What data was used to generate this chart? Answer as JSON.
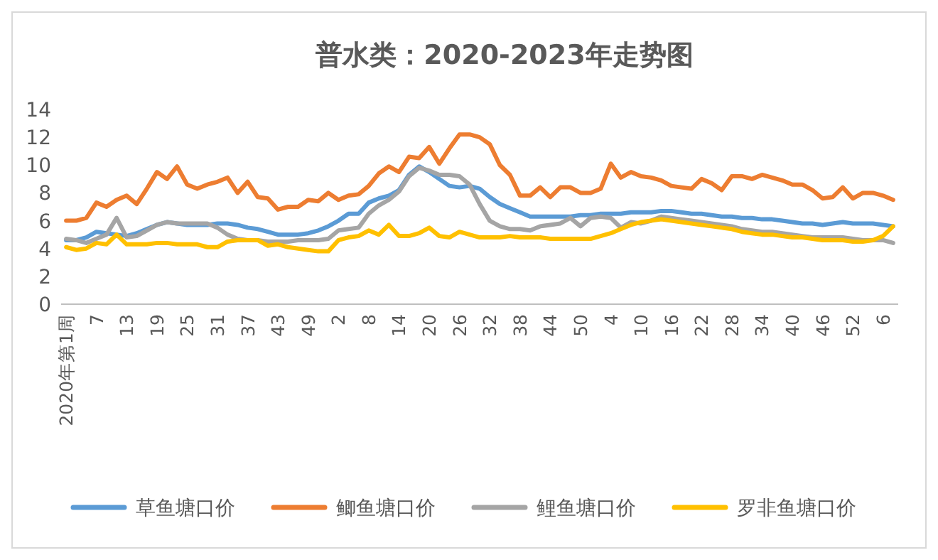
{
  "chart_data": {
    "type": "line",
    "title": "普水类：2020-2023年走势图",
    "categories": [
      "2020年第1周",
      null,
      null,
      "7",
      null,
      null,
      "13",
      null,
      null,
      "19",
      null,
      null,
      "25",
      null,
      null,
      "31",
      null,
      null,
      "37",
      null,
      null,
      "43",
      null,
      null,
      "49",
      null,
      null,
      "2",
      null,
      null,
      "8",
      null,
      null,
      "14",
      null,
      null,
      "20",
      null,
      null,
      "26",
      null,
      null,
      "32",
      null,
      null,
      "38",
      null,
      null,
      "44",
      null,
      null,
      "50",
      null,
      null,
      "4",
      null,
      null,
      "10",
      null,
      null,
      "16",
      null,
      null,
      "22",
      null,
      null,
      "28",
      null,
      null,
      "34",
      null,
      null,
      "40",
      null,
      null,
      "46",
      null,
      null,
      "52",
      null,
      null,
      "6",
      null
    ],
    "series": [
      {
        "name": "草鱼塘口价",
        "color": "#5b9bd5",
        "values": [
          4.6,
          4.6,
          4.8,
          5.2,
          5.1,
          5.0,
          4.9,
          5.1,
          5.4,
          5.7,
          5.9,
          5.8,
          5.7,
          5.7,
          5.7,
          5.8,
          5.8,
          5.7,
          5.5,
          5.4,
          5.2,
          5.0,
          5.0,
          5.0,
          5.1,
          5.3,
          5.6,
          6.0,
          6.5,
          6.5,
          7.3,
          7.6,
          7.8,
          8.2,
          9.3,
          9.9,
          9.5,
          9.0,
          8.5,
          8.4,
          8.5,
          8.3,
          7.7,
          7.2,
          6.9,
          6.6,
          6.3,
          6.3,
          6.3,
          6.3,
          6.3,
          6.4,
          6.4,
          6.5,
          6.5,
          6.5,
          6.6,
          6.6,
          6.6,
          6.7,
          6.7,
          6.6,
          6.5,
          6.5,
          6.4,
          6.3,
          6.3,
          6.2,
          6.2,
          6.1,
          6.1,
          6.0,
          5.9,
          5.8,
          5.8,
          5.7,
          5.8,
          5.9,
          5.8,
          5.8,
          5.8,
          5.7,
          5.6
        ]
      },
      {
        "name": "鲫鱼塘口价",
        "color": "#ed7d31",
        "values": [
          6.0,
          6.0,
          6.2,
          7.3,
          7.0,
          7.5,
          7.8,
          7.2,
          8.3,
          9.5,
          9.0,
          9.9,
          8.6,
          8.3,
          8.6,
          8.8,
          9.1,
          8.0,
          8.8,
          7.7,
          7.6,
          6.8,
          7.0,
          7.0,
          7.5,
          7.4,
          8.0,
          7.5,
          7.8,
          7.9,
          8.5,
          9.4,
          9.9,
          9.5,
          10.6,
          10.5,
          11.3,
          10.1,
          11.2,
          12.2,
          12.2,
          12.0,
          11.5,
          10.0,
          9.3,
          7.8,
          7.8,
          8.4,
          7.7,
          8.4,
          8.4,
          8.0,
          8.0,
          8.3,
          10.1,
          9.1,
          9.5,
          9.2,
          9.1,
          8.9,
          8.5,
          8.4,
          8.3,
          9.0,
          8.7,
          8.2,
          9.2,
          9.2,
          9.0,
          9.3,
          9.1,
          8.9,
          8.6,
          8.6,
          8.2,
          7.6,
          7.7,
          8.4,
          7.6,
          8.0,
          8.0,
          7.8,
          7.5
        ]
      },
      {
        "name": "鲤鱼塘口价",
        "color": "#a5a5a5",
        "values": [
          4.7,
          4.6,
          4.4,
          4.7,
          5.0,
          6.2,
          4.8,
          4.9,
          5.3,
          5.7,
          5.9,
          5.8,
          5.8,
          5.8,
          5.8,
          5.5,
          5.0,
          4.7,
          4.6,
          4.6,
          4.5,
          4.5,
          4.5,
          4.6,
          4.6,
          4.6,
          4.7,
          5.3,
          5.4,
          5.5,
          6.5,
          7.1,
          7.5,
          8.1,
          9.2,
          9.8,
          9.6,
          9.3,
          9.3,
          9.2,
          8.6,
          7.2,
          6.0,
          5.6,
          5.4,
          5.4,
          5.3,
          5.6,
          5.7,
          5.8,
          6.2,
          5.6,
          6.2,
          6.3,
          6.2,
          5.5,
          5.9,
          5.8,
          6.0,
          6.3,
          6.2,
          6.1,
          6.0,
          5.9,
          5.8,
          5.7,
          5.6,
          5.4,
          5.3,
          5.2,
          5.2,
          5.1,
          5.0,
          4.9,
          4.8,
          4.8,
          4.8,
          4.8,
          4.7,
          4.6,
          4.6,
          4.6,
          4.4
        ]
      },
      {
        "name": "罗非鱼塘口价",
        "color": "#ffc000",
        "values": [
          4.1,
          3.9,
          4.0,
          4.4,
          4.3,
          5.0,
          4.3,
          4.3,
          4.3,
          4.4,
          4.4,
          4.3,
          4.3,
          4.3,
          4.1,
          4.1,
          4.5,
          4.6,
          4.6,
          4.6,
          4.2,
          4.3,
          4.1,
          4.0,
          3.9,
          3.8,
          3.8,
          4.6,
          4.8,
          4.9,
          5.3,
          5.0,
          5.7,
          4.9,
          4.9,
          5.1,
          5.5,
          4.9,
          4.8,
          5.2,
          5.0,
          4.8,
          4.8,
          4.8,
          4.9,
          4.8,
          4.8,
          4.8,
          4.7,
          4.7,
          4.7,
          4.7,
          4.7,
          4.9,
          5.1,
          5.4,
          5.7,
          5.9,
          6.0,
          6.1,
          6.0,
          5.9,
          5.8,
          5.7,
          5.6,
          5.5,
          5.4,
          5.2,
          5.1,
          5.0,
          5.0,
          4.9,
          4.8,
          4.8,
          4.7,
          4.6,
          4.6,
          4.6,
          4.5,
          4.5,
          4.6,
          4.9,
          5.6
        ]
      }
    ],
    "ylim": [
      0,
      14
    ],
    "yticks": [
      0,
      2,
      4,
      6,
      8,
      10,
      12,
      14
    ],
    "legend": "bottom"
  }
}
